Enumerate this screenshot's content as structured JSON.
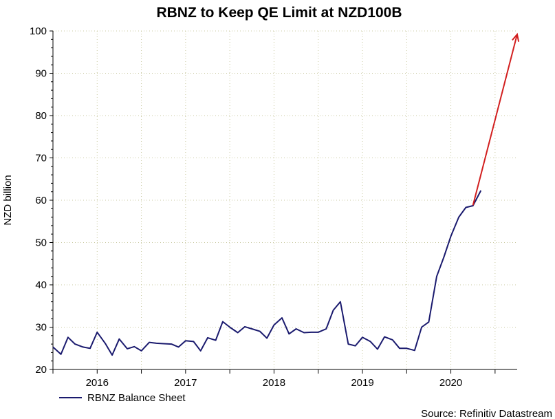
{
  "chart_data": {
    "type": "line",
    "title": "RBNZ to Keep QE Limit at NZD100B",
    "xlabel": "",
    "ylabel": "NZD billion",
    "ylim": [
      20,
      100
    ],
    "yticks": [
      20,
      30,
      40,
      50,
      60,
      70,
      80,
      90,
      100
    ],
    "xlim": [
      2015.5,
      2020.75
    ],
    "year_ticks": [
      2015.5,
      2016,
      2016.5,
      2017,
      2017.5,
      2018,
      2018.5,
      2019,
      2019.5,
      2020,
      2020.5
    ],
    "year_labels": [
      {
        "x": 2016,
        "label": "2016"
      },
      {
        "x": 2017,
        "label": "2017"
      },
      {
        "x": 2018,
        "label": "2018"
      },
      {
        "x": 2019,
        "label": "2019"
      },
      {
        "x": 2020,
        "label": "2020"
      }
    ],
    "grid": true,
    "series": [
      {
        "name": "RBNZ Balance Sheet",
        "color": "#1a1a6e",
        "points": [
          [
            2015.5,
            25.3
          ],
          [
            2015.59,
            23.6
          ],
          [
            2015.67,
            27.6
          ],
          [
            2015.75,
            26.0
          ],
          [
            2015.84,
            25.3
          ],
          [
            2015.92,
            25.0
          ],
          [
            2016.0,
            28.8
          ],
          [
            2016.09,
            26.2
          ],
          [
            2016.17,
            23.4
          ],
          [
            2016.25,
            27.2
          ],
          [
            2016.34,
            24.9
          ],
          [
            2016.42,
            25.4
          ],
          [
            2016.5,
            24.4
          ],
          [
            2016.59,
            26.4
          ],
          [
            2016.67,
            26.2
          ],
          [
            2016.75,
            26.1
          ],
          [
            2016.84,
            26.0
          ],
          [
            2016.92,
            25.3
          ],
          [
            2017.0,
            26.8
          ],
          [
            2017.09,
            26.6
          ],
          [
            2017.17,
            24.4
          ],
          [
            2017.25,
            27.5
          ],
          [
            2017.34,
            26.9
          ],
          [
            2017.42,
            31.3
          ],
          [
            2017.5,
            30.0
          ],
          [
            2017.59,
            28.7
          ],
          [
            2017.67,
            30.1
          ],
          [
            2017.75,
            29.6
          ],
          [
            2017.84,
            29.0
          ],
          [
            2017.92,
            27.4
          ],
          [
            2018.0,
            30.5
          ],
          [
            2018.09,
            32.2
          ],
          [
            2018.17,
            28.4
          ],
          [
            2018.25,
            29.6
          ],
          [
            2018.34,
            28.7
          ],
          [
            2018.42,
            28.8
          ],
          [
            2018.5,
            28.8
          ],
          [
            2018.59,
            29.6
          ],
          [
            2018.67,
            34.0
          ],
          [
            2018.75,
            36.0
          ],
          [
            2018.84,
            26.0
          ],
          [
            2018.92,
            25.6
          ],
          [
            2019.0,
            27.6
          ],
          [
            2019.09,
            26.6
          ],
          [
            2019.17,
            24.8
          ],
          [
            2019.25,
            27.7
          ],
          [
            2019.34,
            27.0
          ],
          [
            2019.42,
            25.0
          ],
          [
            2019.5,
            25.0
          ],
          [
            2019.59,
            24.5
          ],
          [
            2019.67,
            30.0
          ],
          [
            2019.75,
            31.2
          ],
          [
            2019.84,
            42.0
          ],
          [
            2019.92,
            46.5
          ],
          [
            2020.0,
            51.5
          ],
          [
            2020.09,
            56.0
          ],
          [
            2020.17,
            58.3
          ],
          [
            2020.25,
            58.7
          ],
          [
            2020.34,
            62.3
          ]
        ]
      }
    ],
    "annotations": [
      {
        "type": "arrow",
        "color": "#d21f1f",
        "from": [
          2020.25,
          58.8
        ],
        "to": [
          2020.75,
          99.2
        ]
      }
    ],
    "legend": {
      "placement": "bottom-left",
      "label": "RBNZ Balance Sheet"
    },
    "source": "Source: Refinitiv Datastream"
  }
}
